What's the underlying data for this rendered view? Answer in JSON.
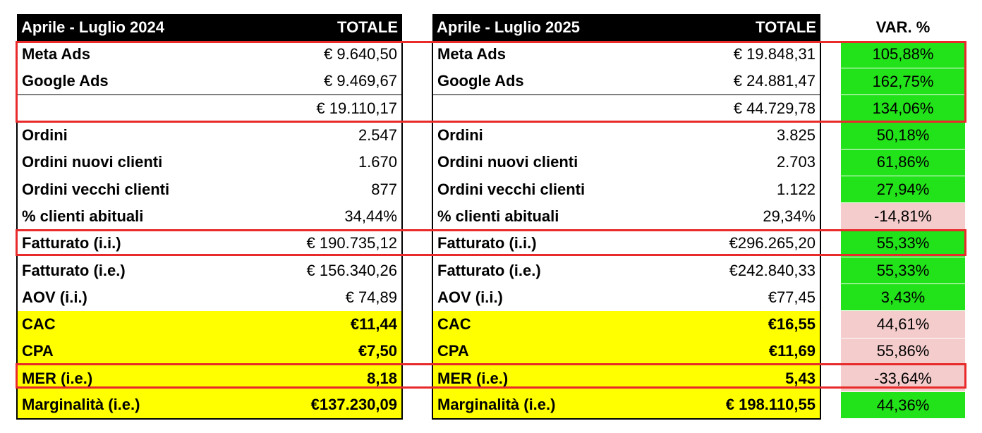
{
  "table_2024": {
    "header": {
      "title": "Aprile - Luglio 2024",
      "total": "TOTALE"
    },
    "rows": [
      {
        "label": "Meta Ads",
        "value": "€ 9.640,50"
      },
      {
        "label": "Google Ads",
        "value": "€ 9.469,67"
      },
      {
        "label": "",
        "value": "€ 19.110,17"
      },
      {
        "label": "Ordini",
        "value": "2.547"
      },
      {
        "label": "Ordini nuovi clienti",
        "value": "1.670"
      },
      {
        "label": "Ordini vecchi clienti",
        "value": "877"
      },
      {
        "label": "% clienti abituali",
        "value": "34,44%"
      },
      {
        "label": "Fatturato (i.i.)",
        "value": "€ 190.735,12"
      },
      {
        "label": "Fatturato (i.e.)",
        "value": "€ 156.340,26"
      },
      {
        "label": "AOV (i.i.)",
        "value": "€ 74,89"
      },
      {
        "label": "CAC",
        "value": "€11,44"
      },
      {
        "label": "CPA",
        "value": "€7,50"
      },
      {
        "label": "MER (i.e.)",
        "value": "8,18"
      },
      {
        "label": "Marginalità (i.e.)",
        "value": "€137.230,09"
      }
    ]
  },
  "table_2025": {
    "header": {
      "title": "Aprile - Luglio 2025",
      "total": "TOTALE"
    },
    "rows": [
      {
        "label": "Meta Ads",
        "value": "€ 19.848,31"
      },
      {
        "label": "Google Ads",
        "value": "€ 24.881,47"
      },
      {
        "label": "",
        "value": "€ 44.729,78"
      },
      {
        "label": "Ordini",
        "value": "3.825"
      },
      {
        "label": "Ordini nuovi clienti",
        "value": "2.703"
      },
      {
        "label": "Ordini vecchi clienti",
        "value": "1.122"
      },
      {
        "label": "% clienti abituali",
        "value": "29,34%"
      },
      {
        "label": "Fatturato (i.i.)",
        "value": "€296.265,20"
      },
      {
        "label": "Fatturato (i.e.)",
        "value": "€242.840,33"
      },
      {
        "label": "AOV (i.i.)",
        "value": "€77,45"
      },
      {
        "label": "CAC",
        "value": "€16,55"
      },
      {
        "label": "CPA",
        "value": "€11,69"
      },
      {
        "label": "MER (i.e.)",
        "value": "5,43"
      },
      {
        "label": "Marginalità (i.e.)",
        "value": "€ 198.110,55"
      }
    ]
  },
  "variation": {
    "header": "VAR. %",
    "values": [
      "105,88%",
      "162,75%",
      "134,06%",
      "50,18%",
      "61,86%",
      "27,94%",
      "-14,81%",
      "55,33%",
      "55,33%",
      "3,43%",
      "44,61%",
      "55,86%",
      "-33,64%",
      "44,36%"
    ],
    "status": [
      "pos",
      "pos",
      "pos",
      "pos",
      "pos",
      "pos",
      "neg",
      "pos",
      "pos",
      "pos",
      "neg",
      "neg",
      "neg",
      "pos"
    ]
  },
  "colors": {
    "header_bg": "#000000",
    "highlight_yellow": "#ffff00",
    "positive_green": "#22e21a",
    "negative_pink": "#f4cccc",
    "highlight_box_red": "#e82a2a"
  }
}
